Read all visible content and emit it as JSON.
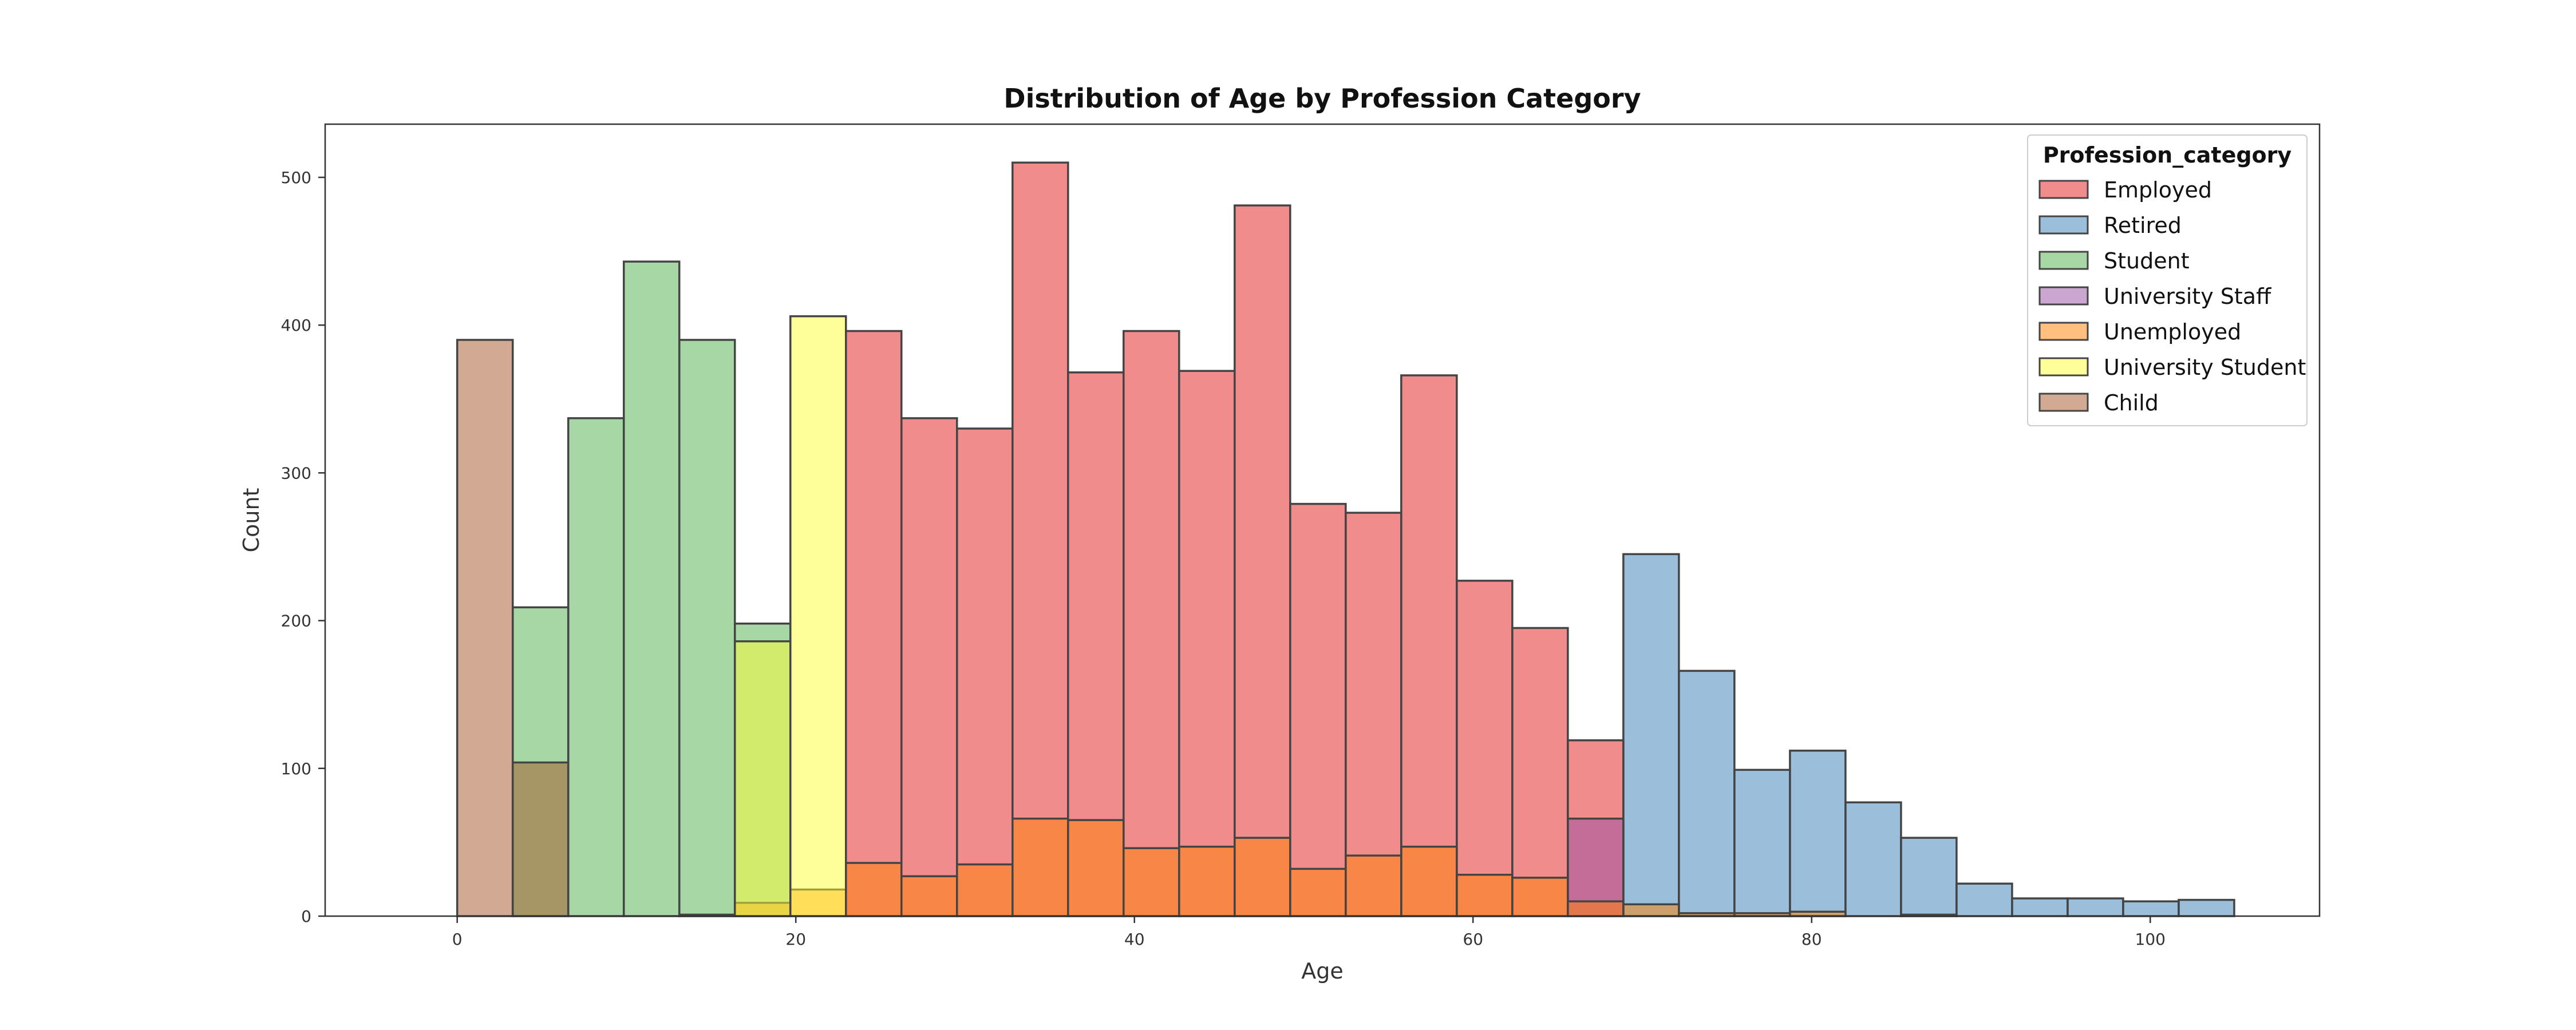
{
  "chart_data": {
    "type": "bar",
    "title": "Distribution of Age by Profession Category",
    "xlabel": "Age",
    "ylabel": "Count",
    "xlim": [
      -7.8,
      110
    ],
    "ylim": [
      0,
      536
    ],
    "x_ticks": [
      0,
      20,
      40,
      60,
      80,
      100
    ],
    "y_ticks": [
      0,
      100,
      200,
      300,
      400,
      500
    ],
    "grid": false,
    "bin_edges": [
      0.0,
      3.28,
      6.56,
      9.84,
      13.12,
      16.4,
      19.68,
      22.96,
      26.24,
      29.52,
      32.8,
      36.08,
      39.36,
      42.64,
      45.92,
      49.2,
      52.48,
      55.76,
      59.04,
      62.32,
      65.6,
      68.88,
      72.16,
      75.44,
      78.72,
      82.0,
      85.28,
      88.56,
      91.84,
      95.12,
      98.4,
      101.68,
      104.96
    ],
    "legend": {
      "title": "Profession_category",
      "position": "top-right",
      "entries": [
        "Employed",
        "Retired",
        "Student",
        "University Staff",
        "Unemployed",
        "University Student",
        "Child"
      ]
    },
    "series": [
      {
        "name": "Employed",
        "color": "#e41a1c",
        "values": [
          0,
          0,
          0,
          0,
          0,
          0,
          0,
          396,
          337,
          330,
          510,
          368,
          396,
          369,
          481,
          279,
          273,
          366,
          227,
          195,
          119,
          0,
          0,
          0,
          0,
          0,
          0,
          0,
          0,
          0,
          0,
          0
        ]
      },
      {
        "name": "Retired",
        "color": "#377eb8",
        "values": [
          0,
          0,
          0,
          0,
          0,
          0,
          0,
          0,
          0,
          0,
          0,
          0,
          0,
          0,
          0,
          0,
          0,
          0,
          0,
          0,
          0,
          245,
          166,
          99,
          112,
          77,
          53,
          22,
          12,
          12,
          10,
          11
        ]
      },
      {
        "name": "Student",
        "color": "#4daf4a",
        "values": [
          0,
          209,
          337,
          443,
          390,
          198,
          0,
          0,
          0,
          0,
          0,
          0,
          0,
          0,
          0,
          0,
          0,
          0,
          0,
          0,
          0,
          0,
          0,
          0,
          0,
          0,
          0,
          0,
          0,
          0,
          0,
          0
        ]
      },
      {
        "name": "University Staff",
        "color": "#984ea3",
        "values": [
          0,
          0,
          0,
          0,
          0,
          0,
          0,
          0,
          0,
          0,
          0,
          0,
          0,
          0,
          0,
          0,
          0,
          0,
          0,
          0,
          66,
          0,
          0,
          0,
          0,
          0,
          0,
          0,
          0,
          0,
          0,
          0
        ]
      },
      {
        "name": "Unemployed",
        "color": "#ff7f00",
        "values": [
          0,
          0,
          0,
          0,
          1,
          9,
          18,
          36,
          27,
          35,
          66,
          65,
          46,
          47,
          53,
          32,
          41,
          47,
          28,
          26,
          10,
          8,
          2,
          2,
          3,
          0,
          1,
          0,
          0,
          0,
          0,
          0
        ]
      },
      {
        "name": "University Student",
        "color": "#ffff33",
        "values": [
          0,
          0,
          0,
          0,
          0,
          186,
          406,
          0,
          0,
          0,
          0,
          0,
          0,
          0,
          0,
          0,
          0,
          0,
          0,
          0,
          0,
          0,
          0,
          0,
          0,
          0,
          0,
          0,
          0,
          0,
          0,
          0
        ]
      },
      {
        "name": "Child",
        "color": "#a65628",
        "values": [
          390,
          104,
          0,
          0,
          0,
          0,
          0,
          0,
          0,
          0,
          0,
          0,
          0,
          0,
          0,
          0,
          0,
          0,
          0,
          0,
          0,
          0,
          0,
          0,
          0,
          0,
          0,
          0,
          0,
          0,
          0,
          0
        ]
      }
    ]
  }
}
